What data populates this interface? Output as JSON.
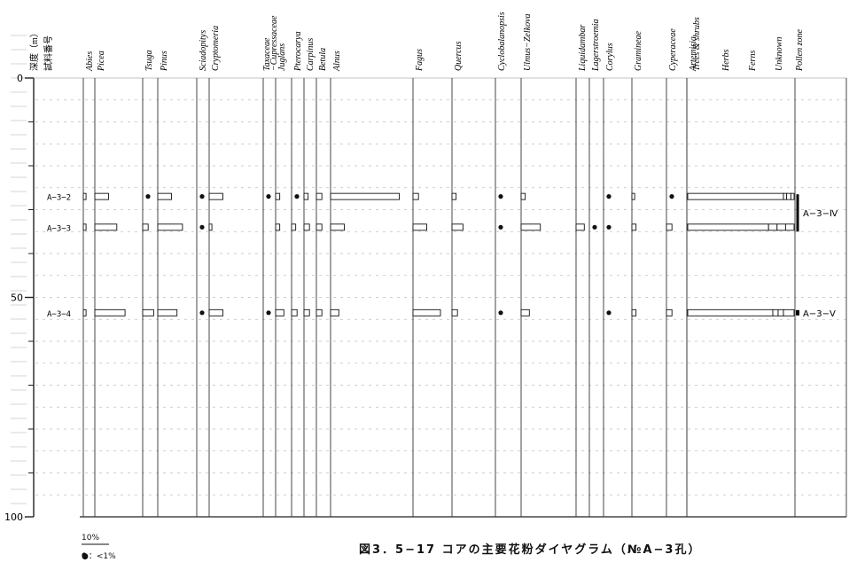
{
  "chart_data": {
    "type": "pollen-diagram",
    "title": "図3．5−17 コアの主要花粉ダイヤグラム（№A−3孔）",
    "depth_label": "深度（m）",
    "sample_label": "試料番号",
    "depth_ticks": [
      "0",
      "50",
      "100"
    ],
    "depth_range": [
      0,
      100
    ],
    "legend_scale": "10%",
    "legend_dot": "●：<1%",
    "taxa": [
      "Abies",
      "Picea",
      "Tsuga",
      "Pinus",
      "Sciadopitys",
      "Cryptomeria",
      "Taxaceae −Cupressaceae",
      "Juglans",
      "Pterocarya",
      "Carpinus",
      "Betula",
      "Alnus",
      "Fagus",
      "Quercus",
      "Cyclobalanopsis",
      "Ulmus−Zelkova",
      "Liquidambar",
      "Lagerstroemia",
      "Corylus",
      "Gramineae",
      "Cyperaceae",
      "Artemisia"
    ],
    "summary_columns": [
      "Trees & shrubs",
      "Herbs",
      "Ferns",
      "Unknown"
    ],
    "zone_column": "Pollen zone",
    "samples": [
      {
        "id": "A−3−2",
        "depth": 27,
        "values": [
          1,
          5,
          0,
          5,
          0.5,
          5,
          0,
          1.5,
          0,
          1.5,
          2,
          25,
          2,
          1.5,
          0,
          1.5,
          null,
          null,
          0,
          1,
          0,
          0
        ],
        "summary": [
          90,
          3,
          4,
          3
        ]
      },
      {
        "id": "A−3−3",
        "depth": 34,
        "values": [
          1,
          8,
          2,
          9,
          0,
          1,
          null,
          1.5,
          1.5,
          2,
          2,
          5,
          5,
          4,
          0,
          7,
          3,
          0,
          0,
          1.5,
          2,
          0
        ],
        "summary": [
          76,
          8,
          8,
          8
        ]
      },
      {
        "id": "A−3−4",
        "depth": 53.5,
        "values": [
          1,
          11,
          4,
          7,
          0,
          5,
          0,
          3,
          2,
          2,
          2,
          3,
          10,
          2,
          0,
          3,
          null,
          null,
          0,
          1.5,
          2,
          3
        ],
        "summary": [
          80,
          5,
          5,
          10
        ]
      }
    ],
    "zones": [
      {
        "label": "A−3−Ⅳ",
        "from": 26.5,
        "to": 35
      },
      {
        "label": "A−3−Ⅴ",
        "from": 53.5,
        "to": 53.5
      }
    ]
  }
}
